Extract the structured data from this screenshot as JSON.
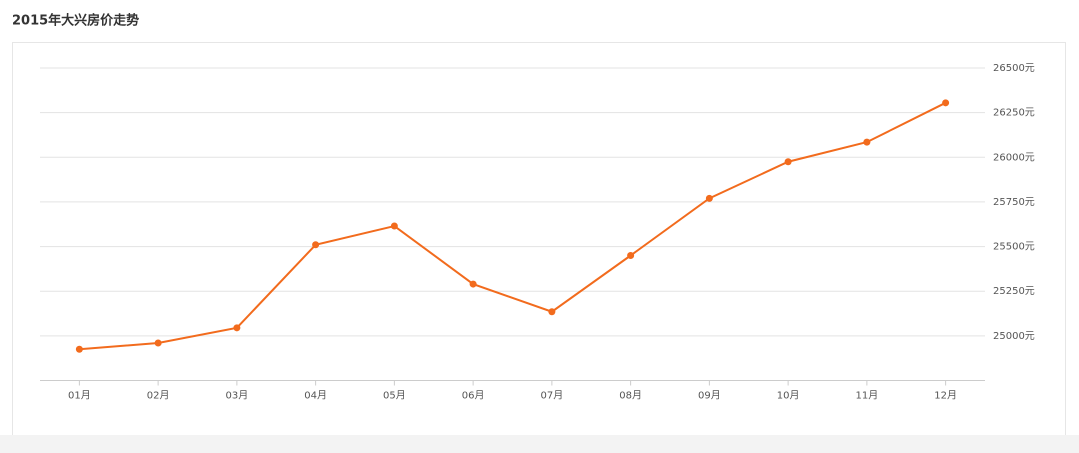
{
  "chart_data": {
    "type": "line",
    "title": "2015年大兴房价走势",
    "categories": [
      "01月",
      "02月",
      "03月",
      "04月",
      "05月",
      "06月",
      "07月",
      "08月",
      "09月",
      "10月",
      "11月",
      "12月"
    ],
    "series": [
      {
        "color": "#f26b1d",
        "values": [
          24925,
          24960,
          25045,
          25510,
          25615,
          25290,
          25135,
          25450,
          25770,
          25975,
          26085,
          26305
        ]
      }
    ],
    "ylim": [
      24750,
      26500
    ],
    "yticks": [
      {
        "value": 25000,
        "label": "25000元"
      },
      {
        "value": 25250,
        "label": "25250元"
      },
      {
        "value": 25500,
        "label": "25500元"
      },
      {
        "value": 25750,
        "label": "25750元"
      },
      {
        "value": 26000,
        "label": "26000元"
      },
      {
        "value": 26250,
        "label": "26250元"
      },
      {
        "value": 26500,
        "label": "26500元"
      }
    ],
    "grid": true
  }
}
